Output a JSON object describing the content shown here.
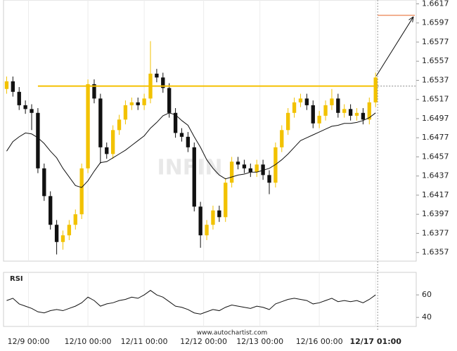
{
  "chart_data": [
    {
      "type": "candlestick",
      "xlim": [
        -0.5,
        65.5
      ],
      "xticks": [
        {
          "value": 3.5,
          "label": "12/9 00:00"
        },
        {
          "value": 13,
          "label": "12/10 00:00"
        },
        {
          "value": 22,
          "label": "12/11 00:00"
        },
        {
          "value": 31.5,
          "label": "12/12 00:00"
        },
        {
          "value": 40.5,
          "label": "12/13 00:00"
        },
        {
          "value": 50,
          "label": "12/16 00:00"
        },
        {
          "value": 59,
          "label": "12/17 01:00"
        }
      ],
      "ylim": [
        1.6348,
        1.6621
      ],
      "yticks": [
        1.6357,
        1.6377,
        1.6397,
        1.6417,
        1.6437,
        1.6457,
        1.6477,
        1.6497,
        1.6517,
        1.6537,
        1.6557,
        1.6577,
        1.6597,
        1.6617
      ],
      "open": [
        1.6528,
        1.6536,
        1.6525,
        1.6511,
        1.6507,
        1.6503,
        1.6445,
        1.6416,
        1.6386,
        1.6368,
        1.6375,
        1.6386,
        1.6397,
        1.6445,
        1.6533,
        1.6518,
        1.6467,
        1.646,
        1.6485,
        1.6496,
        1.6511,
        1.6514,
        1.6511,
        1.6518,
        1.6544,
        1.654,
        1.6529,
        1.6503,
        1.6482,
        1.6478,
        1.6467,
        1.6405,
        1.6375,
        1.6386,
        1.6401,
        1.6394,
        1.643,
        1.6452,
        1.6449,
        1.6445,
        1.6441,
        1.6449,
        1.6438,
        1.643,
        1.6467,
        1.6485,
        1.6503,
        1.6514,
        1.6518,
        1.6511,
        1.6492,
        1.65,
        1.6511,
        1.6518,
        1.6503,
        1.6507,
        1.65,
        1.6503,
        1.6496,
        1.6514
      ],
      "high": [
        1.6541,
        1.6541,
        1.653,
        1.6516,
        1.6512,
        1.6508,
        1.645,
        1.6421,
        1.6391,
        1.638,
        1.6391,
        1.6402,
        1.645,
        1.6538,
        1.6538,
        1.6523,
        1.6472,
        1.649,
        1.6501,
        1.6516,
        1.6519,
        1.6519,
        1.6523,
        1.6578,
        1.6549,
        1.6545,
        1.6534,
        1.6508,
        1.6487,
        1.6483,
        1.6472,
        1.641,
        1.6391,
        1.6406,
        1.6406,
        1.6435,
        1.6457,
        1.6457,
        1.6454,
        1.645,
        1.6454,
        1.6454,
        1.6443,
        1.6472,
        1.649,
        1.6508,
        1.6519,
        1.6523,
        1.6523,
        1.6516,
        1.6505,
        1.6516,
        1.6528,
        1.6523,
        1.6512,
        1.6512,
        1.6508,
        1.6508,
        1.6519,
        1.6545
      ],
      "low": [
        1.6523,
        1.652,
        1.6506,
        1.6502,
        1.6485,
        1.644,
        1.6411,
        1.6381,
        1.6355,
        1.636,
        1.637,
        1.6381,
        1.6392,
        1.644,
        1.6513,
        1.645,
        1.6455,
        1.6455,
        1.648,
        1.6491,
        1.6506,
        1.6506,
        1.6506,
        1.6513,
        1.6535,
        1.6524,
        1.6498,
        1.6477,
        1.6473,
        1.6462,
        1.64,
        1.6362,
        1.637,
        1.6381,
        1.6389,
        1.6389,
        1.6425,
        1.6444,
        1.644,
        1.6436,
        1.6436,
        1.6433,
        1.6418,
        1.6425,
        1.6462,
        1.648,
        1.6498,
        1.6509,
        1.6506,
        1.6487,
        1.6487,
        1.6495,
        1.6506,
        1.6498,
        1.6498,
        1.6495,
        1.6495,
        1.6491,
        1.6491,
        1.6509
      ],
      "close": [
        1.6536,
        1.6525,
        1.6511,
        1.6507,
        1.6503,
        1.6445,
        1.6416,
        1.6386,
        1.6368,
        1.6375,
        1.6386,
        1.6397,
        1.6445,
        1.6533,
        1.6518,
        1.6467,
        1.646,
        1.6485,
        1.6496,
        1.6511,
        1.6514,
        1.6511,
        1.6518,
        1.6544,
        1.654,
        1.6529,
        1.6503,
        1.6482,
        1.6478,
        1.6467,
        1.6405,
        1.6375,
        1.6386,
        1.6401,
        1.6394,
        1.643,
        1.6452,
        1.6449,
        1.6445,
        1.6441,
        1.6449,
        1.6438,
        1.643,
        1.6467,
        1.6485,
        1.6503,
        1.6514,
        1.6518,
        1.6511,
        1.6492,
        1.65,
        1.6511,
        1.6518,
        1.6503,
        1.6507,
        1.65,
        1.6503,
        1.6496,
        1.6514,
        1.654
      ],
      "colors": {
        "up": "#f2c200",
        "down": "#111111"
      },
      "overlay": {
        "color": "#111111",
        "values": [
          1.6463,
          1.6473,
          1.6478,
          1.6482,
          1.6481,
          1.6477,
          1.6471,
          1.6463,
          1.6456,
          1.6445,
          1.6436,
          1.6427,
          1.6425,
          1.6432,
          1.6442,
          1.6451,
          1.6452,
          1.6456,
          1.646,
          1.6464,
          1.6469,
          1.6474,
          1.6479,
          1.6487,
          1.6493,
          1.65,
          1.6503,
          1.6501,
          1.6495,
          1.649,
          1.6478,
          1.6467,
          1.6454,
          1.6445,
          1.6438,
          1.6434,
          1.6436,
          1.6438,
          1.6439,
          1.6441,
          1.6441,
          1.6443,
          1.6445,
          1.6449,
          1.6454,
          1.646,
          1.6467,
          1.6474,
          1.6477,
          1.648,
          1.6483,
          1.6486,
          1.6489,
          1.649,
          1.6492,
          1.6492,
          1.6493,
          1.6495,
          1.6498,
          1.6503
        ]
      },
      "resistance": {
        "value": 1.6531,
        "x_start": 5,
        "color": "#f5c000"
      },
      "target": {
        "value": 1.6605,
        "color": "#e8743b"
      },
      "watermark": "INFIN",
      "grid": true
    },
    {
      "type": "line",
      "title": "RSI",
      "ylim": [
        32,
        80
      ],
      "yticks": [
        40,
        60
      ],
      "color": "#111111",
      "values": [
        55,
        57,
        52,
        50,
        48,
        45,
        44,
        46,
        47,
        46,
        48,
        50,
        53,
        58,
        55,
        50,
        52,
        53,
        55,
        56,
        58,
        57,
        60,
        64,
        60,
        58,
        54,
        50,
        49,
        47,
        44,
        43,
        45,
        47,
        46,
        49,
        51,
        50,
        49,
        48,
        50,
        49,
        47,
        52,
        54,
        56,
        57,
        56,
        55,
        52,
        53,
        55,
        57,
        54,
        55,
        54,
        55,
        53,
        56,
        60
      ]
    }
  ],
  "footer": "www.autochartist.com"
}
